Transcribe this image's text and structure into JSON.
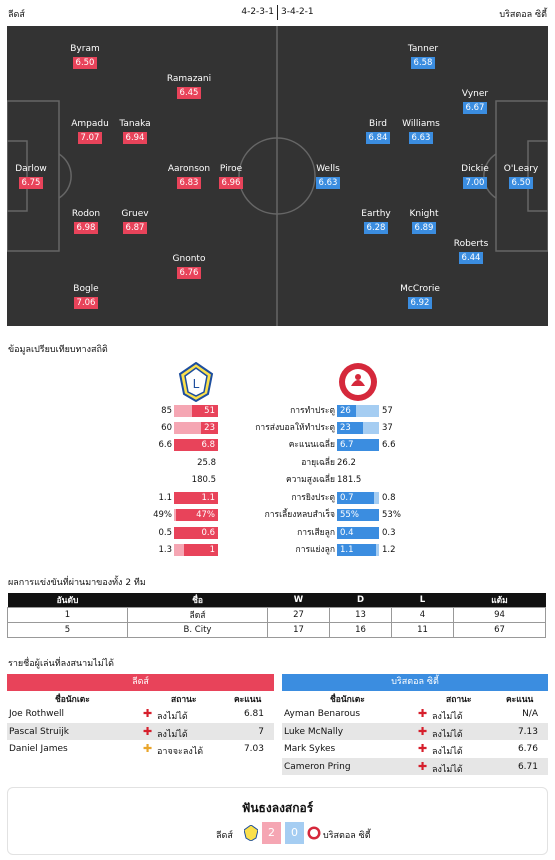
{
  "header": {
    "home_team": "ลีดส์",
    "formation": "4-2-3-1",
    "away_formation": "3-4-2-1",
    "away_team": "บริสตอล ซิตี้"
  },
  "home_players": [
    {
      "name": "Byram",
      "rating": "6.50"
    },
    {
      "name": "Ramazani",
      "rating": "6.45"
    },
    {
      "name": "Ampadu",
      "rating": "7.07"
    },
    {
      "name": "Tanaka",
      "rating": "6.94"
    },
    {
      "name": "Darlow",
      "rating": "6.75"
    },
    {
      "name": "Aaronson",
      "rating": "6.83"
    },
    {
      "name": "Piroe",
      "rating": "6.96"
    },
    {
      "name": "Rodon",
      "rating": "6.98"
    },
    {
      "name": "Gruev",
      "rating": "6.87"
    },
    {
      "name": "Gnonto",
      "rating": "6.76"
    },
    {
      "name": "Bogle",
      "rating": "7.06"
    }
  ],
  "away_players": [
    {
      "name": "Tanner",
      "rating": "6.58"
    },
    {
      "name": "Vyner",
      "rating": "6.67"
    },
    {
      "name": "Bird",
      "rating": "6.84"
    },
    {
      "name": "Williams",
      "rating": "6.63"
    },
    {
      "name": "Wells",
      "rating": "6.63"
    },
    {
      "name": "Dickie",
      "rating": "7.00"
    },
    {
      "name": "O'Leary",
      "rating": "6.50"
    },
    {
      "name": "Earthy",
      "rating": "6.28"
    },
    {
      "name": "Knight",
      "rating": "6.89"
    },
    {
      "name": "Roberts",
      "rating": "6.44"
    },
    {
      "name": "McCrorie",
      "rating": "6.92"
    }
  ],
  "stats": {
    "title": "ข้อมูลเปรียบเทียบทางสถิติ",
    "rows": [
      {
        "label": "การทำประตู",
        "h_total": "85",
        "h_val": "51",
        "a_val": "26",
        "a_total": "57",
        "h_frac": 0.6,
        "a_frac": 0.46
      },
      {
        "label": "การส่งบอลให้ทำประตู",
        "h_total": "60",
        "h_val": "23",
        "a_val": "23",
        "a_total": "37",
        "h_frac": 0.38,
        "a_frac": 0.62
      },
      {
        "label": "คะแนนเฉลี่ย",
        "h_total": "6.6",
        "h_val": "6.8",
        "a_val": "6.7",
        "a_total": "6.6",
        "h_frac": 1,
        "a_frac": 1
      },
      {
        "label": "อายุเฉลี่ย",
        "h_total": "",
        "h_val": "25.8",
        "a_val": "26.2",
        "a_total": "",
        "h_frac": 0,
        "a_frac": 0
      },
      {
        "label": "ความสูงเฉลี่ย",
        "h_total": "",
        "h_val": "180.5",
        "a_val": "181.5",
        "a_total": "",
        "h_frac": 0,
        "a_frac": 0
      },
      {
        "label": "การยิงประตู",
        "h_total": "1.1",
        "h_val": "1.1",
        "a_val": "0.7",
        "a_total": "0.8",
        "h_frac": 1,
        "a_frac": 0.88
      },
      {
        "label": "การเลี้ยงหลบสำเร็จ",
        "h_total": "49%",
        "h_val": "47%",
        "a_val": "55%",
        "a_total": "53%",
        "h_frac": 0.96,
        "a_frac": 1
      },
      {
        "label": "การเสียลูก",
        "h_total": "0.5",
        "h_val": "0.6",
        "a_val": "0.4",
        "a_total": "0.3",
        "h_frac": 1,
        "a_frac": 1
      },
      {
        "label": "การแย่งลูก",
        "h_total": "1.3",
        "h_val": "1",
        "a_val": "1.1",
        "a_total": "1.2",
        "h_frac": 0.77,
        "a_frac": 0.92
      }
    ]
  },
  "h2h": {
    "title": "ผลการแข่งขันที่ผ่านมาของทั้ง 2 ทีม",
    "columns": [
      "อันดับ",
      "ชื่อ",
      "W",
      "D",
      "L",
      "แต้ม"
    ],
    "rows": [
      [
        "1",
        "ลีดส์",
        "27",
        "13",
        "4",
        "94"
      ],
      [
        "5",
        "B. City",
        "17",
        "16",
        "11",
        "67"
      ]
    ]
  },
  "missing": {
    "title": "รายชื่อผู้เล่นที่ลงสนามไม่ได้",
    "home_label": "ลีดส์",
    "away_label": "บริสตอล ซิตี้",
    "col_name": "ชื่อนักเตะ",
    "col_status": "สถานะ",
    "col_rating": "คะแนน",
    "home": [
      {
        "name": "Joe Rothwell",
        "status": "ลงไม่ได้",
        "rating": "6.81",
        "type": "out"
      },
      {
        "name": "Pascal Struijk",
        "status": "ลงไม่ได้",
        "rating": "7",
        "type": "out"
      },
      {
        "name": "Daniel James",
        "status": "อาจจะลงได้",
        "rating": "7.03",
        "type": "doubt"
      }
    ],
    "away": [
      {
        "name": "Ayman Benarous",
        "status": "ลงไม่ได้",
        "rating": "N/A",
        "type": "out"
      },
      {
        "name": "Luke McNally",
        "status": "ลงไม่ได้",
        "rating": "7.13",
        "type": "out"
      },
      {
        "name": "Mark Sykes",
        "status": "ลงไม่ได้",
        "rating": "6.76",
        "type": "out"
      },
      {
        "name": "Cameron Pring",
        "status": "ลงไม่ได้",
        "rating": "6.71",
        "type": "out"
      }
    ]
  },
  "prediction": {
    "title": "ฟันธงลงสกอร์",
    "home": "ลีดส์",
    "home_score": "2",
    "away_score": "0",
    "away": "บริสตอล ซิตี้"
  },
  "colors": {
    "home": "#e8435a",
    "away": "#3b8de0",
    "pitch": "#333333",
    "home_light": "#f5a6b3",
    "away_light": "#a5cdf2"
  }
}
